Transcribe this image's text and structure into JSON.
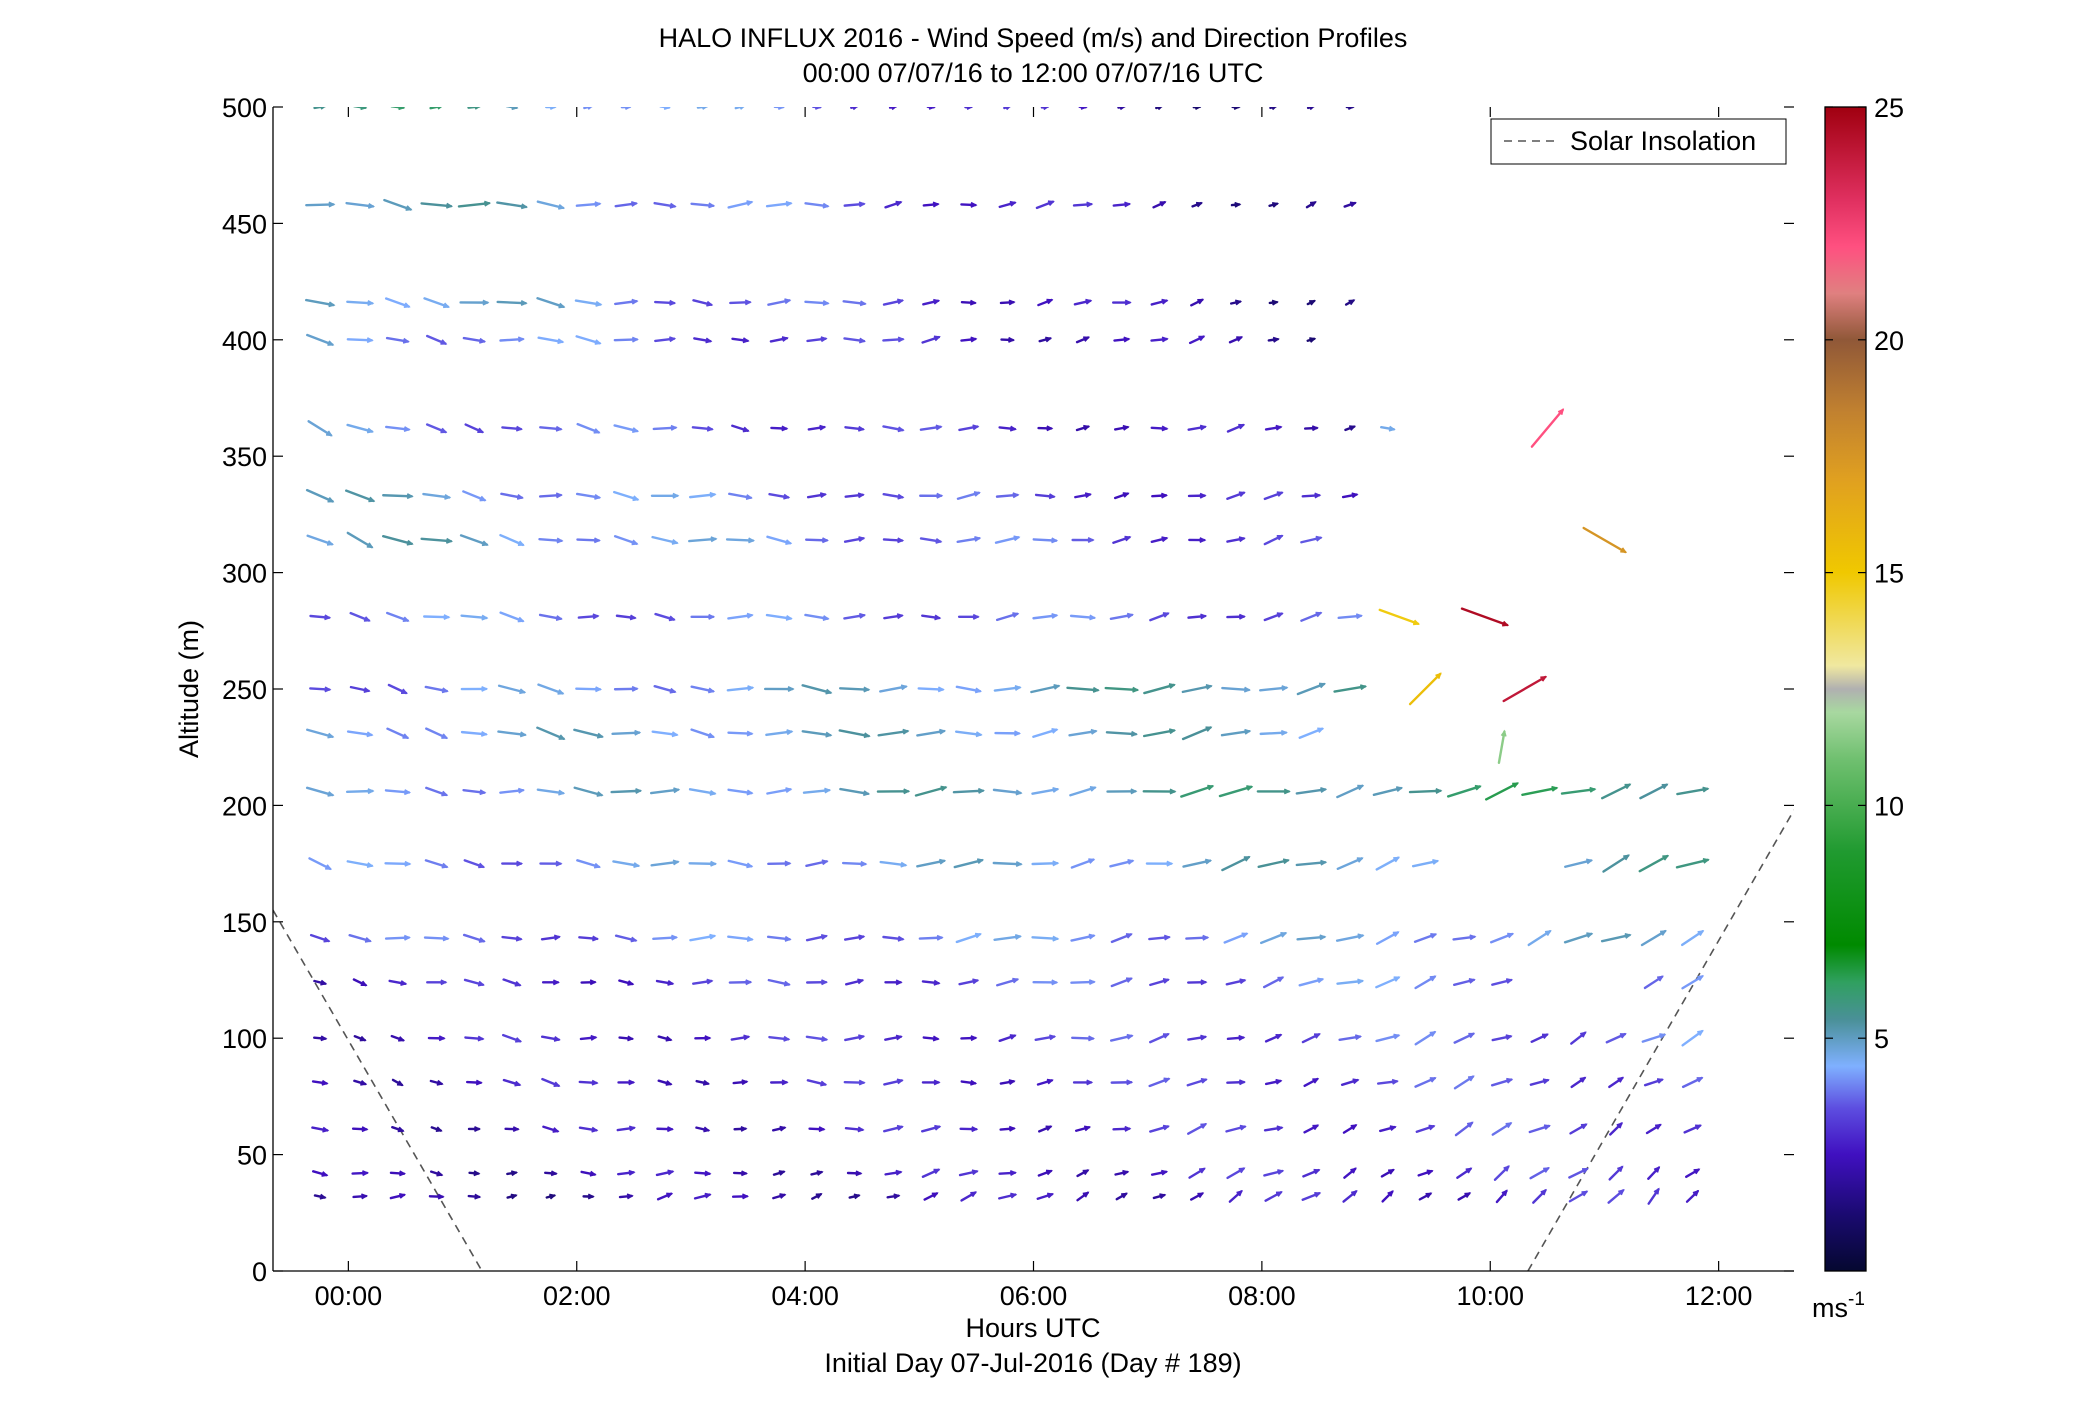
{
  "chart_data": {
    "type": "quiver",
    "title_line1": "HALO INFLUX 2016 - Wind Speed (m/s) and Direction Profiles",
    "title_line2": "00:00 07/07/16 to 12:00 07/07/16  UTC",
    "xlabel": "Hours UTC",
    "xlabel_line2": "Initial Day 07-Jul-2016 (Day # 189)",
    "ylabel": "Altitude (m)",
    "xlim": [
      -0.66,
      12.66
    ],
    "ylim": [
      0,
      500
    ],
    "x_ticks": [
      0,
      2,
      4,
      6,
      8,
      10,
      12
    ],
    "x_tick_labels": [
      "00:00",
      "02:00",
      "04:00",
      "06:00",
      "08:00",
      "10:00",
      "12:00"
    ],
    "y_ticks": [
      0,
      50,
      100,
      150,
      200,
      250,
      300,
      350,
      400,
      450,
      500
    ],
    "y_tick_labels": [
      "0",
      "50",
      "100",
      "150",
      "200",
      "250",
      "300",
      "350",
      "400",
      "450",
      "500"
    ],
    "legend": {
      "position": "top-right",
      "entries": [
        "Solar Insolation"
      ]
    },
    "solar_insolation": [
      {
        "x": [
          -0.66,
          1.17
        ],
        "y": [
          155,
          0
        ]
      },
      {
        "x": [
          10.33,
          12.66
        ],
        "y": [
          0,
          198
        ]
      }
    ],
    "colorbar": {
      "min": 0,
      "max": 25,
      "ticks": [
        5,
        10,
        15,
        20,
        25
      ],
      "tick_labels": [
        "5",
        "10",
        "15",
        "20",
        "25"
      ],
      "unit": "ms",
      "unit_exponent": "-1",
      "stops": [
        {
          "v": 0,
          "color": "#050830"
        },
        {
          "v": 1.2,
          "color": "#1a0a70"
        },
        {
          "v": 2.5,
          "color": "#4010c0"
        },
        {
          "v": 3.5,
          "color": "#5d4ee0"
        },
        {
          "v": 4.4,
          "color": "#7fb0ff"
        },
        {
          "v": 5.4,
          "color": "#4a9098"
        },
        {
          "v": 6.2,
          "color": "#30a060"
        },
        {
          "v": 7.0,
          "color": "#008a00"
        },
        {
          "v": 9.0,
          "color": "#209a30"
        },
        {
          "v": 11.0,
          "color": "#70c070"
        },
        {
          "v": 12.0,
          "color": "#a8d8a0"
        },
        {
          "v": 12.5,
          "color": "#b0b0b0"
        },
        {
          "v": 13.0,
          "color": "#f0e8a0"
        },
        {
          "v": 15.0,
          "color": "#f0c800"
        },
        {
          "v": 17.0,
          "color": "#e0a020"
        },
        {
          "v": 18.5,
          "color": "#c08030"
        },
        {
          "v": 20.0,
          "color": "#905838"
        },
        {
          "v": 21.0,
          "color": "#e08080"
        },
        {
          "v": 22.0,
          "color": "#ff5080"
        },
        {
          "v": 23.0,
          "color": "#e03060"
        },
        {
          "v": 25.0,
          "color": "#a00010"
        }
      ]
    },
    "times": [
      -0.25,
      0.1,
      0.43,
      0.77,
      1.1,
      1.43,
      1.77,
      2.1,
      2.43,
      2.77,
      3.1,
      3.43,
      3.77,
      4.1,
      4.43,
      4.77,
      5.1,
      5.43,
      5.77,
      6.1,
      6.43,
      6.77,
      7.1,
      7.43,
      7.77,
      8.1,
      8.43,
      8.77,
      9.1,
      9.43,
      9.77,
      10.1,
      10.43,
      10.77,
      11.1,
      11.43,
      11.77
    ],
    "altitudes": [
      32,
      42,
      61,
      81,
      100,
      124,
      143,
      175,
      206,
      231,
      250,
      281,
      314,
      333,
      362,
      400,
      416,
      458,
      500
    ],
    "rows": [
      {
        "alt": 32,
        "dir_start": 270,
        "dir_end": 225,
        "spd_start": 1.8,
        "spd_end": 3.0,
        "t_end": 11.77,
        "gaps": []
      },
      {
        "alt": 42,
        "dir_start": 280,
        "dir_end": 230,
        "spd_start": 2.0,
        "spd_end": 3.2,
        "t_end": 11.77,
        "gaps": []
      },
      {
        "alt": 61,
        "dir_start": 285,
        "dir_end": 235,
        "spd_start": 2.2,
        "spd_end": 3.4,
        "t_end": 11.77,
        "gaps": []
      },
      {
        "alt": 81,
        "dir_start": 290,
        "dir_end": 240,
        "spd_start": 2.4,
        "spd_end": 3.5,
        "t_end": 11.77,
        "gaps": []
      },
      {
        "alt": 100,
        "dir_start": 285,
        "dir_end": 240,
        "spd_start": 2.5,
        "spd_end": 3.8,
        "t_end": 11.77,
        "gaps": []
      },
      {
        "alt": 124,
        "dir_start": 285,
        "dir_end": 245,
        "spd_start": 2.6,
        "spd_end": 4.2,
        "t_end": 11.77,
        "gaps": [
          10.43,
          10.77,
          11.1
        ]
      },
      {
        "alt": 143,
        "dir_start": 280,
        "dir_end": 245,
        "spd_start": 3.5,
        "spd_end": 4.6,
        "t_end": 11.77,
        "gaps": []
      },
      {
        "alt": 175,
        "dir_start": 285,
        "dir_end": 245,
        "spd_start": 3.8,
        "spd_end": 5.2,
        "t_end": 11.77,
        "gaps": [
          9.77,
          10.1,
          10.43
        ]
      },
      {
        "alt": 206,
        "dir_start": 280,
        "dir_end": 250,
        "spd_start": 4.2,
        "spd_end": 6.0,
        "t_end": 11.77,
        "gaps": []
      },
      {
        "alt": 231,
        "dir_start": 290,
        "dir_end": 255,
        "spd_start": 4.5,
        "spd_end": 5.0,
        "t_end": 8.43,
        "gaps": []
      },
      {
        "alt": 250,
        "dir_start": 285,
        "dir_end": 260,
        "spd_start": 3.8,
        "spd_end": 5.5,
        "t_end": 8.77,
        "gaps": []
      },
      {
        "alt": 281,
        "dir_start": 285,
        "dir_end": 255,
        "spd_start": 4.0,
        "spd_end": 3.5,
        "t_end": 8.77,
        "gaps": []
      },
      {
        "alt": 314,
        "dir_start": 290,
        "dir_end": 255,
        "spd_start": 5.0,
        "spd_end": 3.0,
        "t_end": 8.43,
        "gaps": []
      },
      {
        "alt": 333,
        "dir_start": 285,
        "dir_end": 255,
        "spd_start": 4.8,
        "spd_end": 2.5,
        "t_end": 8.77,
        "gaps": []
      },
      {
        "alt": 362,
        "dir_start": 290,
        "dir_end": 255,
        "spd_start": 4.2,
        "spd_end": 2.2,
        "t_end": 8.77,
        "gaps": []
      },
      {
        "alt": 400,
        "dir_start": 285,
        "dir_end": 250,
        "spd_start": 4.5,
        "spd_end": 1.8,
        "t_end": 8.43,
        "gaps": []
      },
      {
        "alt": 416,
        "dir_start": 285,
        "dir_end": 250,
        "spd_start": 5.2,
        "spd_end": 1.6,
        "t_end": 8.77,
        "gaps": []
      },
      {
        "alt": 458,
        "dir_start": 280,
        "dir_end": 250,
        "spd_start": 5.5,
        "spd_end": 1.5,
        "t_end": 8.77,
        "gaps": []
      },
      {
        "alt": 500,
        "dir_start": 270,
        "dir_end": 260,
        "spd_start": 6.0,
        "spd_end": 1.0,
        "t_end": 8.77,
        "gaps": [],
        "short": true
      }
    ],
    "extra_vectors": [
      {
        "t": 9.1,
        "alt": 362,
        "dir": 280,
        "spd": 4.6
      },
      {
        "t": 10.5,
        "alt": 362,
        "dir": 220,
        "spd": 22.0
      },
      {
        "t": 11.0,
        "alt": 314,
        "dir": 300,
        "spd": 17.5
      },
      {
        "t": 9.2,
        "alt": 281,
        "dir": 290,
        "spd": 14.8
      },
      {
        "t": 9.95,
        "alt": 281,
        "dir": 290,
        "spd": 24.5
      },
      {
        "t": 9.43,
        "alt": 250,
        "dir": 225,
        "spd": 15.5
      },
      {
        "t": 10.3,
        "alt": 250,
        "dir": 240,
        "spd": 24.0
      },
      {
        "t": 10.1,
        "alt": 225,
        "dir": 190,
        "spd": 11.5
      }
    ]
  }
}
